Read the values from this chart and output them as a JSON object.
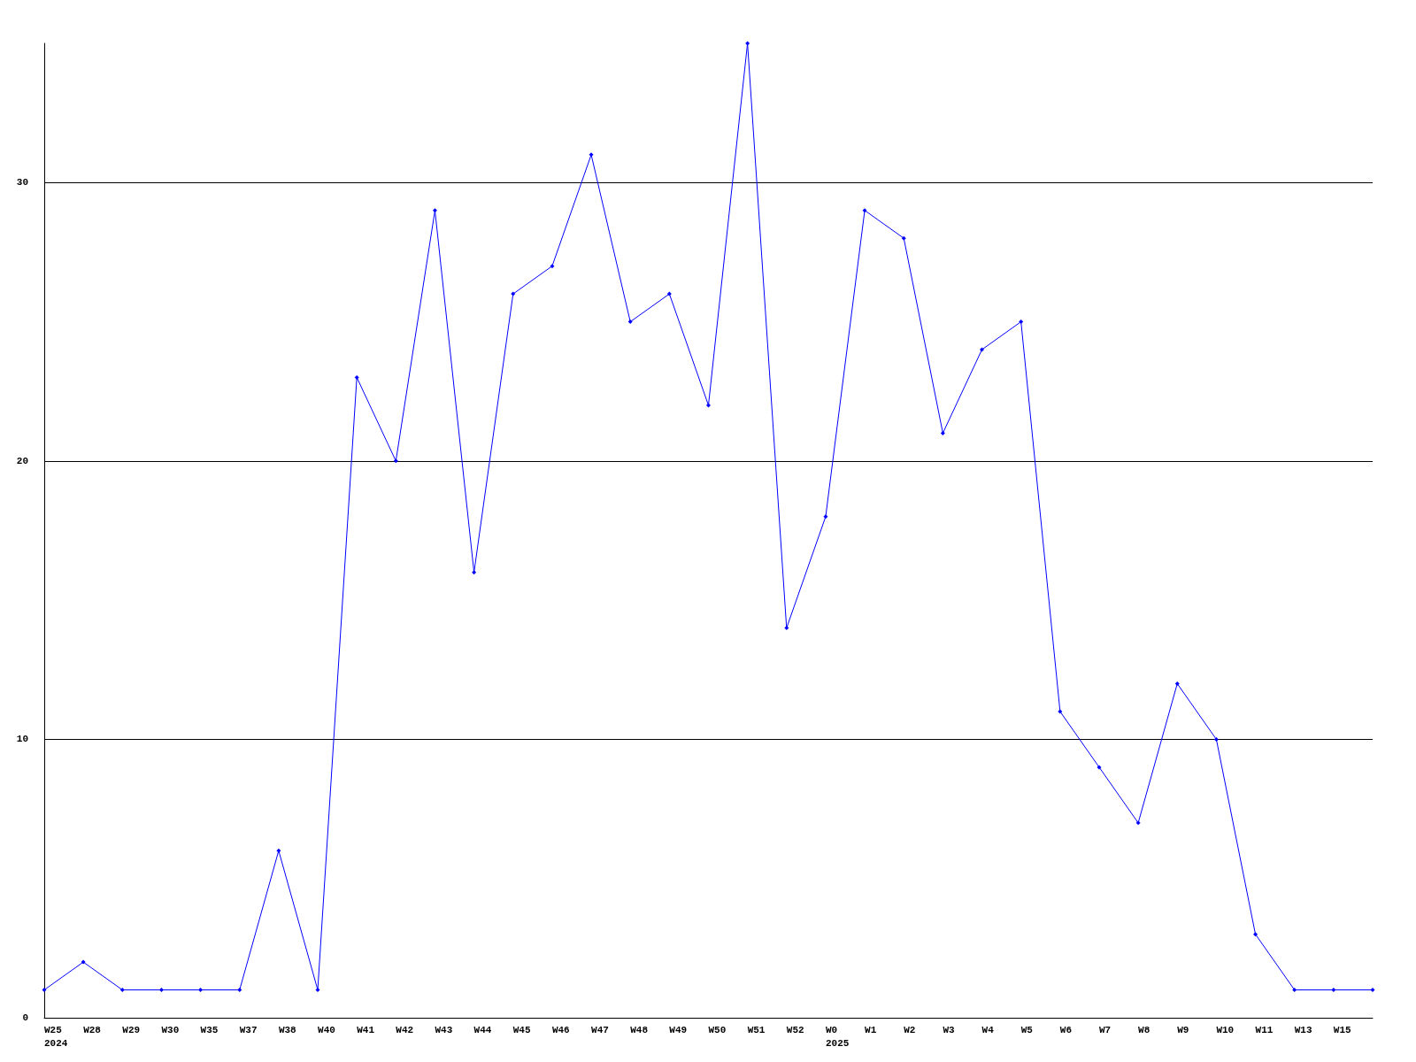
{
  "chart_data": {
    "type": "line",
    "categories": [
      "W25\n2024",
      "W28",
      "W29",
      "W30",
      "W35",
      "W37",
      "W38",
      "W40",
      "W41",
      "W42",
      "W43",
      "W44",
      "W45",
      "W46",
      "W47",
      "W48",
      "W49",
      "W50",
      "W51",
      "W52",
      "W0\n2025",
      "W1",
      "W2",
      "W3",
      "W4",
      "W5",
      "W6",
      "W7",
      "W8",
      "W9",
      "W10",
      "W11",
      "W13",
      "W15",
      null
    ],
    "series": [
      {
        "color": "#0000ff",
        "values": [
          1,
          2,
          1,
          1,
          1,
          1,
          6,
          1,
          23,
          20,
          29,
          16,
          26,
          27,
          31,
          25,
          26,
          22,
          35,
          14,
          18,
          29,
          28,
          21,
          24,
          25,
          11,
          9,
          7,
          12,
          10,
          3,
          1,
          1,
          1
        ]
      }
    ],
    "ylim": [
      0,
      35
    ],
    "yticks": [
      0,
      10,
      20,
      30
    ],
    "grid": "y",
    "marker": "diamond",
    "line_style": "solid"
  }
}
